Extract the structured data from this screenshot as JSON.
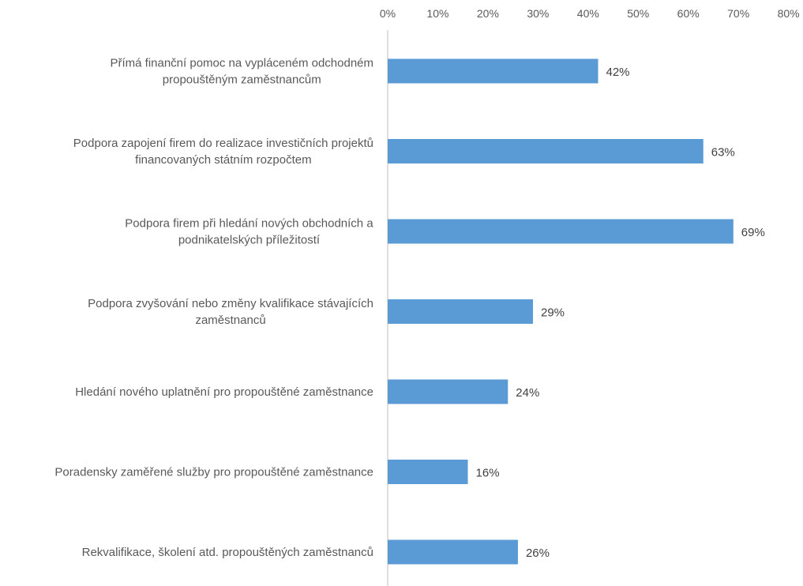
{
  "chart_data": {
    "type": "bar",
    "orientation": "horizontal",
    "categories": [
      [
        "Přímá finanční pomoc na vypláceném odchodném",
        "propouštěným zaměstnancům"
      ],
      [
        "Podpora zapojení firem do realizace investičních projektů",
        "financovaných státním rozpočtem"
      ],
      [
        "Podpora firem při hledání nových obchodních a",
        "podnikatelských příležitostí"
      ],
      [
        "Podpora zvyšování nebo změny kvalifikace stávajících",
        "zaměstnanců"
      ],
      [
        "Hledání nového uplatnění pro propouštěné zaměstnance"
      ],
      [
        "Poradensky zaměřené služby pro propouštěné zaměstnance"
      ],
      [
        "Rekvalifikace, školení atd. propouštěných zaměstnanců"
      ]
    ],
    "values": [
      42,
      63,
      69,
      29,
      24,
      16,
      26
    ],
    "data_labels": [
      "42%",
      "63%",
      "69%",
      "29%",
      "24%",
      "16%",
      "26%"
    ],
    "xlim": [
      0,
      80
    ],
    "ticks": [
      "0%",
      "10%",
      "20%",
      "30%",
      "40%",
      "50%",
      "60%",
      "70%",
      "80%"
    ],
    "axis_position": "top",
    "grid": false,
    "bar_color": "#5b9bd5"
  }
}
